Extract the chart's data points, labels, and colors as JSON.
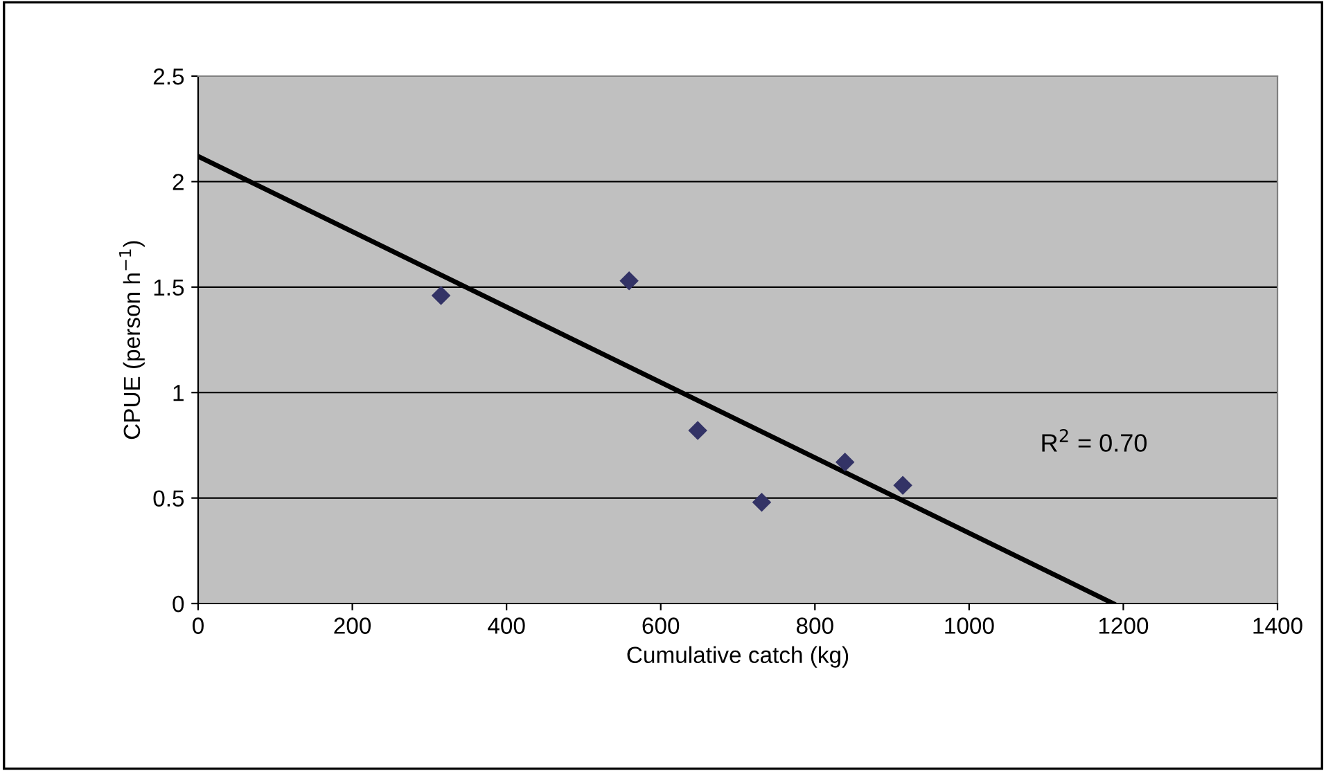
{
  "chart_data": {
    "type": "scatter",
    "xlabel": "Cumulative catch (kg)",
    "ylabel": "CPUE (person h$^{−1}$)",
    "xlim": [
      0,
      1400
    ],
    "xticks": [
      0,
      200,
      400,
      600,
      800,
      1000,
      1200,
      1400
    ],
    "ylim": [
      0,
      2.5
    ],
    "yticks": [
      0,
      0.5,
      1,
      1.5,
      2,
      2.5
    ],
    "grid": "y",
    "series": [
      {
        "marker": "diamond",
        "color": "#333366",
        "x": [
          315,
          559,
          648,
          731,
          839,
          914
        ],
        "values": [
          1.46,
          1.53,
          0.82,
          0.48,
          0.67,
          0.56
        ]
      },
      {
        "type": "line",
        "color": "#000000",
        "x": [
          0,
          1187
        ],
        "values": [
          2.12,
          0
        ]
      }
    ],
    "annotations": [
      "R$^{2}$ = 0.70"
    ]
  }
}
